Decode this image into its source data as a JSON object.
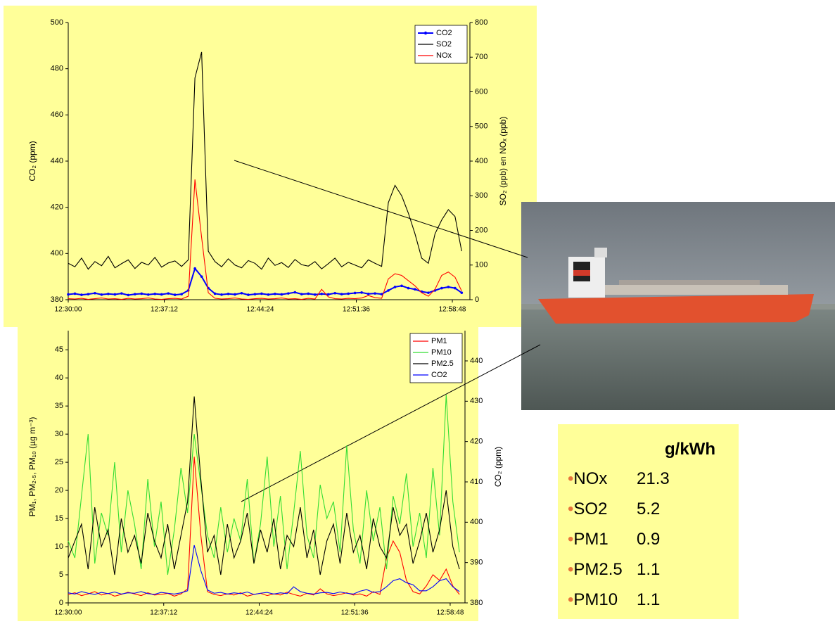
{
  "chart_data": [
    {
      "type": "line",
      "x": [
        "12:30:00",
        "12:30:30",
        "12:31:00",
        "12:31:30",
        "12:32:00",
        "12:32:30",
        "12:33:00",
        "12:33:30",
        "12:34:00",
        "12:34:30",
        "12:35:00",
        "12:35:30",
        "12:36:00",
        "12:36:30",
        "12:37:00",
        "12:37:30",
        "12:38:00",
        "12:38:30",
        "12:39:00",
        "12:39:30",
        "12:40:00",
        "12:40:30",
        "12:41:00",
        "12:41:30",
        "12:42:00",
        "12:42:30",
        "12:43:00",
        "12:43:30",
        "12:44:00",
        "12:44:30",
        "12:45:00",
        "12:45:30",
        "12:46:00",
        "12:46:30",
        "12:47:00",
        "12:47:30",
        "12:48:00",
        "12:48:30",
        "12:49:00",
        "12:49:30",
        "12:50:00",
        "12:50:30",
        "12:51:00",
        "12:51:30",
        "12:52:00",
        "12:52:30",
        "12:53:00",
        "12:53:30",
        "12:54:00",
        "12:54:30",
        "12:55:00",
        "12:55:30",
        "12:56:00",
        "12:56:30",
        "12:57:00",
        "12:57:30",
        "12:58:00",
        "12:58:30",
        "12:59:00",
        "12:59:30"
      ],
      "xlim": [
        "12:30:00",
        "13:00:07"
      ],
      "xticks": [
        "12:30:00",
        "12:37:12",
        "12:44:24",
        "12:51:36",
        "12:58:48"
      ],
      "ylim": [
        380,
        500
      ],
      "yticks": [
        380,
        400,
        420,
        440,
        460,
        480,
        500
      ],
      "y2lim": [
        0,
        800
      ],
      "y2ticks": [
        0,
        100,
        200,
        300,
        400,
        500,
        600,
        700,
        800
      ],
      "y_label": "CO₂ (ppm)",
      "y2_label": "SO₂ (ppb) en NOₓ (ppb)",
      "legend": "upper right",
      "series": [
        {
          "name": "CO2",
          "color": "#0000ff",
          "marker": "circle",
          "values": [
            382.3,
            382.6,
            382.1,
            382.4,
            382.8,
            382.2,
            382.5,
            382.3,
            382.7,
            382.0,
            382.4,
            382.6,
            382.2,
            382.5,
            382.3,
            382.7,
            382.1,
            382.4,
            384,
            393.5,
            390,
            385,
            382.6,
            382.2,
            382.5,
            382.3,
            382.8,
            382.1,
            382.4,
            382.6,
            382.2,
            382.5,
            382.3,
            382.7,
            383.2,
            382.4,
            382.6,
            382.2,
            382.5,
            382.3,
            382.8,
            382.4,
            382.6,
            382.9,
            383.1,
            382.5,
            382.7,
            382.4,
            384,
            385.5,
            386,
            385,
            384.5,
            383.5,
            383,
            384,
            385,
            385.5,
            385,
            383
          ]
        },
        {
          "name": "SO2",
          "color": "#000000",
          "axis": "y2",
          "values": [
            105,
            95,
            120,
            88,
            110,
            98,
            125,
            92,
            104,
            115,
            90,
            108,
            100,
            122,
            94,
            106,
            112,
            96,
            115,
            640,
            715,
            140,
            110,
            95,
            118,
            100,
            92,
            113,
            105,
            88,
            120,
            99,
            107,
            93,
            116,
            101,
            97,
            110,
            89,
            104,
            120,
            95,
            108,
            100,
            92,
            115,
            105,
            96,
            280,
            330,
            300,
            250,
            190,
            120,
            105,
            190,
            230,
            260,
            240,
            140
          ]
        },
        {
          "name": "NOx",
          "color": "#ff0000",
          "axis": "y2",
          "values": [
            3,
            2,
            4,
            1,
            3,
            5,
            2,
            3,
            1,
            4,
            2,
            3,
            5,
            2,
            1,
            3,
            4,
            2,
            10,
            347,
            180,
            20,
            4,
            2,
            3,
            5,
            2,
            1,
            3,
            4,
            2,
            3,
            5,
            2,
            3,
            1,
            4,
            2,
            30,
            8,
            3,
            2,
            4,
            3,
            5,
            12,
            6,
            4,
            60,
            75,
            70,
            55,
            40,
            20,
            10,
            30,
            70,
            80,
            65,
            25
          ]
        }
      ]
    },
    {
      "type": "line",
      "x": [
        "12:30:00",
        "12:30:30",
        "12:31:00",
        "12:31:30",
        "12:32:00",
        "12:32:30",
        "12:33:00",
        "12:33:30",
        "12:34:00",
        "12:34:30",
        "12:35:00",
        "12:35:30",
        "12:36:00",
        "12:36:30",
        "12:37:00",
        "12:37:30",
        "12:38:00",
        "12:38:30",
        "12:39:00",
        "12:39:30",
        "12:40:00",
        "12:40:30",
        "12:41:00",
        "12:41:30",
        "12:42:00",
        "12:42:30",
        "12:43:00",
        "12:43:30",
        "12:44:00",
        "12:44:30",
        "12:45:00",
        "12:45:30",
        "12:46:00",
        "12:46:30",
        "12:47:00",
        "12:47:30",
        "12:48:00",
        "12:48:30",
        "12:49:00",
        "12:49:30",
        "12:50:00",
        "12:50:30",
        "12:51:00",
        "12:51:30",
        "12:52:00",
        "12:52:30",
        "12:53:00",
        "12:53:30",
        "12:54:00",
        "12:54:30",
        "12:55:00",
        "12:55:30",
        "12:56:00",
        "12:56:30",
        "12:57:00",
        "12:57:30",
        "12:58:00",
        "12:58:30",
        "12:59:00",
        "12:59:30"
      ],
      "xlim": [
        "12:30:00",
        "12:59:55"
      ],
      "xticks": [
        "12:30:00",
        "12:37:12",
        "12:44:24",
        "12:51:36",
        "12:58:48"
      ],
      "ylim": [
        0,
        48.4
      ],
      "yticks": [
        0,
        5,
        10,
        15,
        20,
        25,
        30,
        35,
        40,
        45
      ],
      "y2lim": [
        380,
        447.5
      ],
      "y2ticks": [
        380,
        390,
        400,
        410,
        420,
        430,
        440
      ],
      "y_label": "PM₁, PM₂.₅, PM₁₀ (µg m⁻³)",
      "y2_label": "CO₂ (ppm)",
      "legend": "upper right",
      "series": [
        {
          "name": "PM1",
          "color": "#ff0000",
          "values": [
            1.5,
            1.8,
            1.3,
            1.6,
            2,
            1.4,
            1.7,
            1.2,
            1.5,
            1.9,
            1.6,
            1.3,
            1.8,
            1.4,
            1.5,
            1.7,
            1.2,
            1.6,
            2.5,
            26,
            12,
            2,
            1.5,
            1.3,
            1.6,
            1.4,
            1.8,
            1.2,
            1.5,
            1.7,
            1.3,
            1.6,
            1.4,
            1.9,
            1.5,
            1.2,
            1.7,
            1.4,
            2.5,
            1.6,
            1.3,
            1.5,
            1.8,
            1.4,
            1.6,
            1.2,
            2,
            1.5,
            8,
            11,
            9,
            4,
            2,
            1.6,
            3,
            5,
            4,
            6,
            3,
            1.5
          ]
        },
        {
          "name": "PM10",
          "color": "#33dd33",
          "values": [
            11,
            8,
            19,
            30,
            7,
            16,
            12,
            25,
            9,
            20,
            14,
            6,
            22,
            10,
            18,
            5,
            13,
            24,
            16,
            30,
            21,
            12,
            8,
            17,
            9,
            15,
            11,
            22,
            7,
            14,
            26,
            10,
            19,
            6,
            16,
            27,
            12,
            8,
            21,
            15,
            18,
            9,
            28,
            13,
            7,
            20,
            11,
            17,
            6,
            19,
            14,
            23,
            10,
            16,
            8,
            24,
            12,
            37,
            18,
            9
          ]
        },
        {
          "name": "PM2.5",
          "color": "#000000",
          "values": [
            8,
            11,
            14,
            6,
            17,
            10,
            13,
            5,
            15,
            9,
            12,
            7,
            16,
            11,
            8,
            14,
            6,
            12,
            18,
            36.7,
            22,
            9,
            12,
            5,
            14,
            8,
            11,
            16,
            7,
            13,
            9,
            15,
            6,
            12,
            10,
            17,
            8,
            13,
            5,
            11,
            14,
            7,
            16,
            9,
            12,
            6,
            15,
            10,
            8,
            17,
            12,
            14,
            7,
            11,
            16,
            9,
            13,
            20,
            10,
            6
          ]
        },
        {
          "name": "CO2",
          "color": "#0000ff",
          "axis": "y2",
          "values": [
            382.5,
            382.2,
            382.8,
            382.4,
            382.1,
            382.6,
            382.3,
            382.7,
            382.2,
            382.5,
            382.4,
            382.8,
            382.3,
            382.1,
            382.6,
            382.4,
            382.2,
            382.5,
            383,
            394.3,
            388,
            383.2,
            382.4,
            382.6,
            382.2,
            382.5,
            382.3,
            382.7,
            382.1,
            382.4,
            382.6,
            382.2,
            382.5,
            382.3,
            384,
            382.8,
            382.4,
            382.2,
            382.5,
            382.6,
            382.3,
            382.7,
            382.4,
            382.2,
            382.9,
            383.3,
            382.6,
            382.8,
            384,
            385.5,
            386,
            385,
            384.5,
            383,
            383,
            384,
            385.5,
            386,
            384,
            382.8
          ]
        }
      ]
    }
  ],
  "emission_table": {
    "header": "g/kWh",
    "rows": [
      [
        "NOx",
        21.3
      ],
      [
        "SO2",
        5.2
      ],
      [
        "PM1",
        0.9
      ],
      [
        "PM2.5",
        1.1
      ],
      [
        "PM10",
        1.1
      ]
    ]
  }
}
